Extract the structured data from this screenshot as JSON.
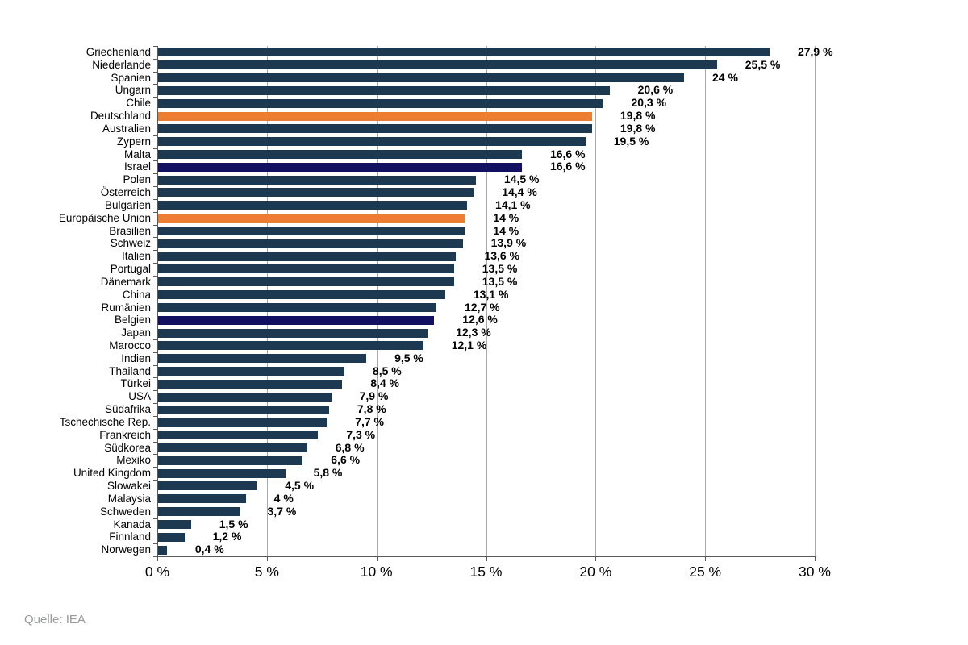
{
  "chart_data": {
    "type": "bar",
    "orientation": "horizontal",
    "title": "",
    "xlabel": "",
    "ylabel": "",
    "xlim": [
      0,
      30
    ],
    "grid": true,
    "x_ticks": [
      "0 %",
      "5 %",
      "10 %",
      "15 %",
      "20 %",
      "25 %",
      "30 %"
    ],
    "x_tick_values": [
      0,
      5,
      10,
      15,
      20,
      25,
      30
    ],
    "categories": [
      "Griechenland",
      "Niederlande",
      "Spanien",
      "Ungarn",
      "Chile",
      "Deutschland",
      "Australien",
      "Zypern",
      "Malta",
      "Israel",
      "Polen",
      "Österreich",
      "Bulgarien",
      "Europäische Union",
      "Brasilien",
      "Schweiz",
      "Italien",
      "Portugal",
      "Dänemark",
      "China",
      "Rumänien",
      "Belgien",
      "Japan",
      "Marocco",
      "Indien",
      "Thailand",
      "Türkei",
      "USA",
      "Südafrika",
      "Tschechische Rep.",
      "Frankreich",
      "Südkorea",
      "Mexiko",
      "United Kingdom",
      "Slowakei",
      "Malaysia",
      "Schweden",
      "Kanada",
      "Finnland",
      "Norwegen"
    ],
    "values": [
      27.9,
      25.5,
      24,
      20.6,
      20.3,
      19.8,
      19.8,
      19.5,
      16.6,
      16.6,
      14.5,
      14.4,
      14.1,
      14,
      14,
      13.9,
      13.6,
      13.5,
      13.5,
      13.1,
      12.7,
      12.6,
      12.3,
      12.1,
      9.5,
      8.5,
      8.4,
      7.9,
      7.8,
      7.7,
      7.3,
      6.8,
      6.6,
      5.8,
      4.5,
      4,
      3.7,
      1.5,
      1.2,
      0.4
    ],
    "display_labels": [
      "27,9 %",
      "25,5 %",
      "24 %",
      "20,6 %",
      "20,3 %",
      "19,8 %",
      "19,8 %",
      "19,5 %",
      "16,6 %",
      "16,6 %",
      "14,5 %",
      "14,4 %",
      "14,1 %",
      "14 %",
      "14 %",
      "13,9 %",
      "13,6 %",
      "13,5 %",
      "13,5 %",
      "13,1 %",
      "12,7 %",
      "12,6 %",
      "12,3 %",
      "12,1 %",
      "9,5 %",
      "8,5 %",
      "8,4 %",
      "7,9 %",
      "7,8 %",
      "7,7 %",
      "7,3 %",
      "6,8 %",
      "6,6 %",
      "5,8 %",
      "4,5 %",
      "4 %",
      "3,7 %",
      "1,5 %",
      "1,2 %",
      "0,4 %"
    ],
    "highlights": {
      "orange": [
        "Deutschland",
        "Europäische Union"
      ],
      "navy": [
        "Israel",
        "Belgien"
      ]
    },
    "legend": null
  },
  "colors": {
    "bar_default": "#1c3951",
    "bar_orange": "#ed7d31",
    "bar_navy": "#121060",
    "gridline": "#a9a9a9",
    "axis": "#595959",
    "source_text": "#97999b"
  },
  "source": {
    "label": "Quelle: IEA"
  }
}
